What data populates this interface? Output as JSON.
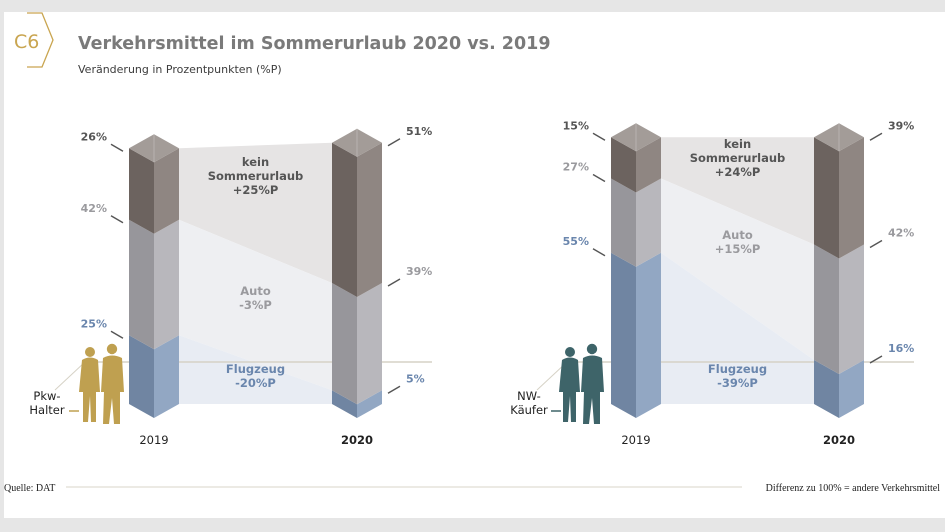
{
  "header": {
    "code": "C6",
    "title": "Verkehrsmittel im Sommerurlaub 2020 vs. 2019",
    "subtitle": "Veränderung in Prozentpunkten (%P)"
  },
  "colors": {
    "accent": "#c9a550",
    "kein_sommerurlaub": "#7b716c",
    "auto": "#acaab0",
    "flugzeug": "#7f97b8",
    "flugzeug_text": "#6a86ad",
    "auto_text": "#9a9a9e",
    "kein_text": "#555555",
    "group_pkw": "#bfa050",
    "group_nw": "#3e6469"
  },
  "chart_data": [
    {
      "type": "bar",
      "subtype": "stacked-3d-columns-with-change-bands",
      "group": "Pkw-Halter",
      "categories": [
        "2019",
        "2020"
      ],
      "series": [
        {
          "name": "Flugzeug",
          "values": [
            25,
            5
          ],
          "change_label": "-20%P"
        },
        {
          "name": "Auto",
          "values": [
            42,
            39
          ],
          "change_label": "-3%P"
        },
        {
          "name": "kein Sommerurlaub",
          "values": [
            26,
            51
          ],
          "change_label": "+25%P"
        }
      ],
      "value_labels": {
        "2019": [
          "25%",
          "42%",
          "26%"
        ],
        "2020": [
          "5%",
          "39%",
          "51%"
        ]
      },
      "ylim": [
        0,
        100
      ]
    },
    {
      "type": "bar",
      "subtype": "stacked-3d-columns-with-change-bands",
      "group": "NW-Käufer",
      "categories": [
        "2019",
        "2020"
      ],
      "series": [
        {
          "name": "Flugzeug",
          "values": [
            55,
            16
          ],
          "change_label": "-39%P"
        },
        {
          "name": "Auto",
          "values": [
            27,
            42
          ],
          "change_label": "+15%P"
        },
        {
          "name": "kein Sommerurlaub",
          "values": [
            15,
            39
          ],
          "change_label": "+24%P"
        }
      ],
      "value_labels": {
        "2019": [
          "55%",
          "27%",
          "15%"
        ],
        "2020": [
          "16%",
          "42%",
          "39%"
        ]
      },
      "ylim": [
        0,
        100
      ]
    }
  ],
  "panels": [
    {
      "group_label_line1": "Pkw-",
      "group_label_line2": "Halter",
      "year_left": "2019",
      "year_right": "2020",
      "band_labels": {
        "kein": [
          "kein",
          "Sommerurlaub",
          "+25%P"
        ],
        "auto": [
          "Auto",
          "-3%P"
        ],
        "flug": [
          "Flugzeug",
          "-20%P"
        ]
      }
    },
    {
      "group_label_line1": "NW-",
      "group_label_line2": "Käufer",
      "year_left": "2019",
      "year_right": "2020",
      "band_labels": {
        "kein": [
          "kein",
          "Sommerurlaub",
          "+24%P"
        ],
        "auto": [
          "Auto",
          "+15%P"
        ],
        "flug": [
          "Flugzeug",
          "-39%P"
        ]
      }
    }
  ],
  "footer": {
    "source": "Quelle: DAT",
    "note": "Differenz zu 100% = andere Verkehrsmittel"
  }
}
